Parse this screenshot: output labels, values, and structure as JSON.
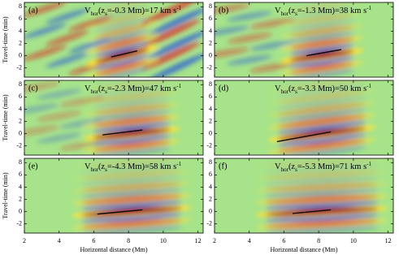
{
  "figure": {
    "xlabel": "Horizontal distance (Mm)",
    "ylabel": "Travel-time (min)",
    "xlim": [
      2,
      12.3
    ],
    "ylim": [
      -3.5,
      8.7
    ],
    "xticks": [
      2,
      4,
      6,
      8,
      10,
      12
    ],
    "yticks": [
      -2,
      0,
      2,
      4,
      6,
      8
    ],
    "panels": [
      {
        "label": "(a)",
        "annotation": {
          "v": "V",
          "sub": "hor",
          "open": "(z",
          "sub2": "s",
          "rest": "=-0.3 Mm)=17 km s",
          "sup": "-1"
        },
        "fit": {
          "x": [
            7,
            8.5
          ],
          "y": [
            -0.2,
            0.8
          ]
        }
      },
      {
        "label": "(b)",
        "annotation": {
          "v": "V",
          "sub": "hor",
          "open": "(z",
          "sub2": "s",
          "rest": "=-1.3 Mm)=38 km s",
          "sup": "-1"
        },
        "fit": {
          "x": [
            7.3,
            9.3
          ],
          "y": [
            0,
            1
          ]
        }
      },
      {
        "label": "(c)",
        "annotation": {
          "v": "V",
          "sub": "hor",
          "open": "(z",
          "sub2": "s",
          "rest": "=-2.3 Mm)=47 km s",
          "sup": "-1"
        },
        "fit": {
          "x": [
            6.5,
            8.8
          ],
          "y": [
            -0.2,
            0.6
          ]
        }
      },
      {
        "label": "(d)",
        "annotation": {
          "v": "V",
          "sub": "hor",
          "open": "(z",
          "sub2": "s",
          "rest": "=-3.3 Mm)=50 km s",
          "sup": "-1"
        },
        "fit": {
          "x": [
            5.6,
            8.7
          ],
          "y": [
            -1.3,
            0.3
          ]
        }
      },
      {
        "label": "(e)",
        "annotation": {
          "v": "V",
          "sub": "hor",
          "open": "(z",
          "sub2": "s",
          "rest": "=-4.3 Mm)=58 km s",
          "sup": "-1"
        },
        "fit": {
          "x": [
            6.2,
            8.8
          ],
          "y": [
            -0.4,
            0.3
          ]
        }
      },
      {
        "label": "(f)",
        "annotation": {
          "v": "V",
          "sub": "hor",
          "open": "(z",
          "sub2": "s",
          "rest": "=-5.3 Mm)=71 km s",
          "sup": "-1"
        },
        "fit": {
          "x": [
            6.5,
            8.7
          ],
          "y": [
            -0.3,
            0.3
          ]
        }
      }
    ]
  }
}
